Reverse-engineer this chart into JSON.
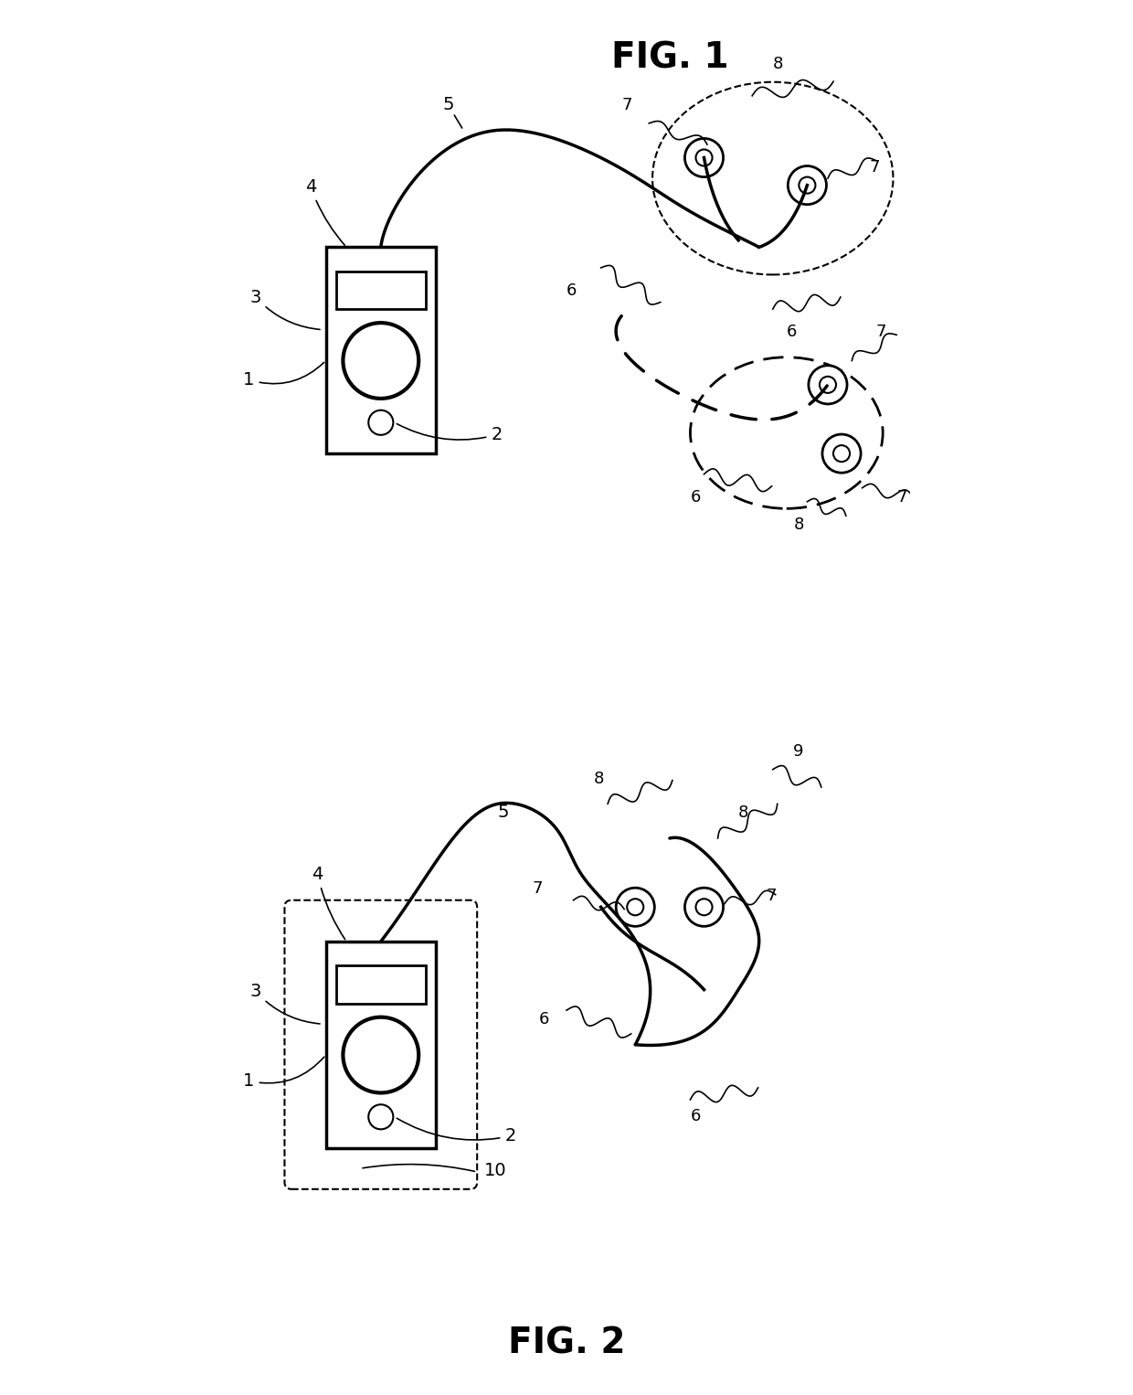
{
  "fig1_title": "FIG. 1",
  "fig2_title": "FIG. 2",
  "bg_color": "#ffffff",
  "line_color": "#000000",
  "dashed_color": "#555555"
}
